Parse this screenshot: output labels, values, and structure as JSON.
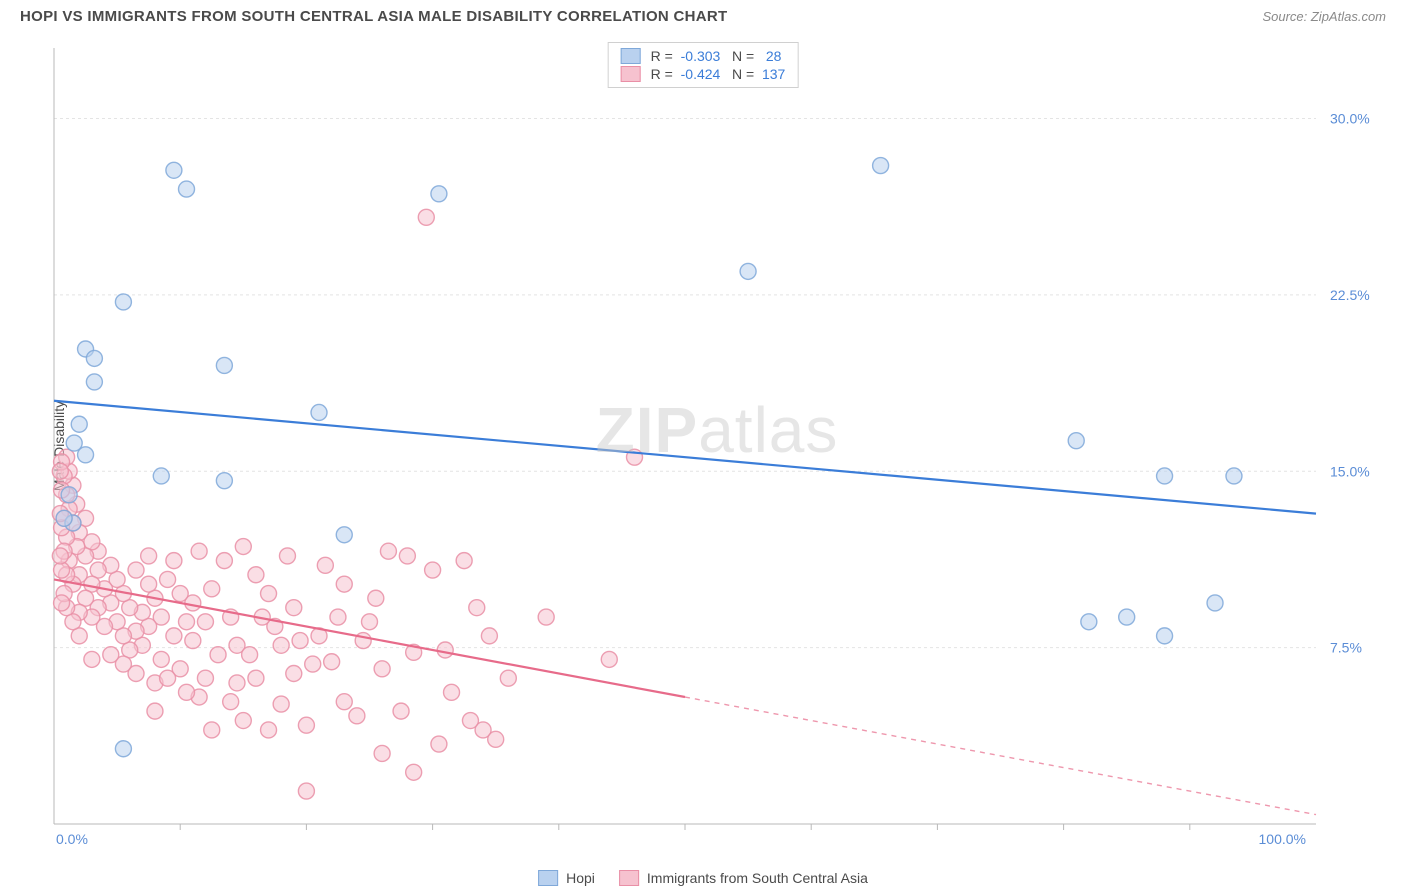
{
  "title": "HOPI VS IMMIGRANTS FROM SOUTH CENTRAL ASIA MALE DISABILITY CORRELATION CHART",
  "source": "Source: ZipAtlas.com",
  "watermark_bold": "ZIP",
  "watermark_rest": "atlas",
  "ylabel": "Male Disability",
  "chart": {
    "type": "scatter",
    "xlim": [
      0,
      100
    ],
    "ylim": [
      0,
      33
    ],
    "xticks_major": [
      0,
      100
    ],
    "xticks_minor": [
      10,
      20,
      30,
      40,
      50,
      60,
      70,
      80,
      90
    ],
    "yticks": [
      7.5,
      15.0,
      22.5,
      30.0
    ],
    "xtick_labels": [
      "0.0%",
      "100.0%"
    ],
    "ytick_labels": [
      "7.5%",
      "15.0%",
      "22.5%",
      "30.0%"
    ],
    "grid_color": "#e4e4e4",
    "axis_color": "#b8b8b8",
    "background": "#ffffff",
    "marker_radius": 8,
    "marker_opacity": 0.55,
    "series": [
      {
        "name": "Hopi",
        "color_fill": "#b9d1ef",
        "color_stroke": "#7fa8d9",
        "R": "-0.303",
        "N": "28",
        "trend": {
          "x1": 0,
          "y1": 18.0,
          "x2": 100,
          "y2": 13.2,
          "solid_until": 100
        },
        "points": [
          [
            9.5,
            27.8
          ],
          [
            10.5,
            27.0
          ],
          [
            5.5,
            22.2
          ],
          [
            2.5,
            20.2
          ],
          [
            3.2,
            19.8
          ],
          [
            3.2,
            18.8
          ],
          [
            13.5,
            19.5
          ],
          [
            2.5,
            15.7
          ],
          [
            8.5,
            14.8
          ],
          [
            13.5,
            14.6
          ],
          [
            21.0,
            17.5
          ],
          [
            30.5,
            26.8
          ],
          [
            23.0,
            12.3
          ],
          [
            5.5,
            3.2
          ],
          [
            55.0,
            23.5
          ],
          [
            65.5,
            28.0
          ],
          [
            81.0,
            16.3
          ],
          [
            82.0,
            8.6
          ],
          [
            85.0,
            8.8
          ],
          [
            88.0,
            14.8
          ],
          [
            88.0,
            8.0
          ],
          [
            93.5,
            14.8
          ],
          [
            92.0,
            9.4
          ],
          [
            1.5,
            12.8
          ],
          [
            1.2,
            14.0
          ],
          [
            0.8,
            13.0
          ],
          [
            1.6,
            16.2
          ],
          [
            2.0,
            17.0
          ]
        ]
      },
      {
        "name": "Immigrants from South Central Asia",
        "color_fill": "#f6c2cf",
        "color_stroke": "#e98fa6",
        "R": "-0.424",
        "N": "137",
        "trend": {
          "x1": 0,
          "y1": 10.4,
          "x2": 100,
          "y2": 0.4,
          "solid_until": 50
        },
        "points": [
          [
            29.5,
            25.8
          ],
          [
            46.0,
            15.6
          ],
          [
            39.0,
            8.8
          ],
          [
            44.0,
            7.0
          ],
          [
            34.0,
            4.0
          ],
          [
            35.0,
            3.6
          ],
          [
            33.0,
            4.4
          ],
          [
            32.5,
            11.2
          ],
          [
            31.0,
            7.4
          ],
          [
            30.0,
            10.8
          ],
          [
            28.0,
            11.4
          ],
          [
            28.5,
            7.3
          ],
          [
            26.5,
            11.6
          ],
          [
            26.0,
            6.6
          ],
          [
            25.0,
            8.6
          ],
          [
            24.0,
            4.6
          ],
          [
            23.0,
            10.2
          ],
          [
            22.0,
            6.9
          ],
          [
            21.0,
            8.0
          ],
          [
            21.5,
            11.0
          ],
          [
            20.0,
            1.4
          ],
          [
            20.5,
            6.8
          ],
          [
            19.0,
            9.2
          ],
          [
            19.0,
            6.4
          ],
          [
            18.5,
            11.4
          ],
          [
            18.0,
            5.1
          ],
          [
            17.0,
            4.0
          ],
          [
            17.5,
            8.4
          ],
          [
            16.0,
            6.2
          ],
          [
            16.0,
            10.6
          ],
          [
            15.0,
            11.8
          ],
          [
            15.0,
            4.4
          ],
          [
            14.5,
            7.6
          ],
          [
            14.5,
            6.0
          ],
          [
            14.0,
            8.8
          ],
          [
            13.0,
            7.2
          ],
          [
            12.5,
            10.0
          ],
          [
            12.0,
            6.2
          ],
          [
            12.0,
            8.6
          ],
          [
            11.5,
            5.4
          ],
          [
            11.0,
            9.4
          ],
          [
            11.0,
            7.8
          ],
          [
            10.5,
            8.6
          ],
          [
            10.0,
            6.6
          ],
          [
            10.0,
            9.8
          ],
          [
            9.5,
            8.0
          ],
          [
            9.0,
            10.4
          ],
          [
            8.5,
            7.0
          ],
          [
            8.5,
            8.8
          ],
          [
            8.0,
            9.6
          ],
          [
            8.0,
            6.0
          ],
          [
            7.5,
            8.4
          ],
          [
            7.5,
            10.2
          ],
          [
            7.0,
            7.6
          ],
          [
            7.0,
            9.0
          ],
          [
            6.5,
            8.2
          ],
          [
            6.5,
            10.8
          ],
          [
            6.0,
            9.2
          ],
          [
            6.0,
            7.4
          ],
          [
            5.5,
            9.8
          ],
          [
            5.5,
            8.0
          ],
          [
            5.0,
            10.4
          ],
          [
            5.0,
            8.6
          ],
          [
            4.5,
            9.4
          ],
          [
            4.5,
            11.0
          ],
          [
            4.0,
            10.0
          ],
          [
            4.0,
            8.4
          ],
          [
            3.5,
            10.8
          ],
          [
            3.5,
            9.2
          ],
          [
            3.5,
            11.6
          ],
          [
            3.0,
            10.2
          ],
          [
            3.0,
            12.0
          ],
          [
            3.0,
            8.8
          ],
          [
            2.5,
            11.4
          ],
          [
            2.5,
            9.6
          ],
          [
            2.5,
            13.0
          ],
          [
            2.0,
            10.6
          ],
          [
            2.0,
            12.4
          ],
          [
            2.0,
            9.0
          ],
          [
            1.8,
            11.8
          ],
          [
            1.8,
            13.6
          ],
          [
            1.5,
            10.2
          ],
          [
            1.5,
            12.8
          ],
          [
            1.5,
            14.4
          ],
          [
            1.2,
            11.2
          ],
          [
            1.2,
            13.4
          ],
          [
            1.2,
            15.0
          ],
          [
            1.0,
            10.6
          ],
          [
            1.0,
            12.2
          ],
          [
            1.0,
            14.0
          ],
          [
            1.0,
            15.6
          ],
          [
            0.8,
            11.6
          ],
          [
            0.8,
            13.0
          ],
          [
            0.8,
            14.8
          ],
          [
            0.6,
            10.8
          ],
          [
            0.6,
            12.6
          ],
          [
            0.6,
            14.2
          ],
          [
            0.6,
            15.4
          ],
          [
            0.5,
            11.4
          ],
          [
            0.5,
            13.2
          ],
          [
            0.5,
            15.0
          ],
          [
            34.5,
            8.0
          ],
          [
            36.0,
            6.2
          ],
          [
            30.5,
            3.4
          ],
          [
            27.5,
            4.8
          ],
          [
            24.5,
            7.8
          ],
          [
            23.0,
            5.2
          ],
          [
            28.5,
            2.2
          ],
          [
            25.5,
            9.6
          ],
          [
            15.5,
            7.2
          ],
          [
            13.5,
            11.2
          ],
          [
            19.5,
            7.8
          ],
          [
            17.0,
            9.8
          ],
          [
            10.5,
            5.6
          ],
          [
            9.5,
            11.2
          ],
          [
            8.0,
            4.8
          ],
          [
            6.5,
            6.4
          ],
          [
            31.5,
            5.6
          ],
          [
            33.5,
            9.2
          ],
          [
            26.0,
            3.0
          ],
          [
            22.5,
            8.8
          ],
          [
            20.0,
            4.2
          ],
          [
            18.0,
            7.6
          ],
          [
            16.5,
            8.8
          ],
          [
            14.0,
            5.2
          ],
          [
            12.5,
            4.0
          ],
          [
            11.5,
            11.6
          ],
          [
            9.0,
            6.2
          ],
          [
            7.5,
            11.4
          ],
          [
            5.5,
            6.8
          ],
          [
            4.5,
            7.2
          ],
          [
            3.0,
            7.0
          ],
          [
            2.0,
            8.0
          ],
          [
            1.5,
            8.6
          ],
          [
            1.0,
            9.2
          ],
          [
            0.8,
            9.8
          ],
          [
            0.6,
            9.4
          ]
        ]
      }
    ]
  }
}
